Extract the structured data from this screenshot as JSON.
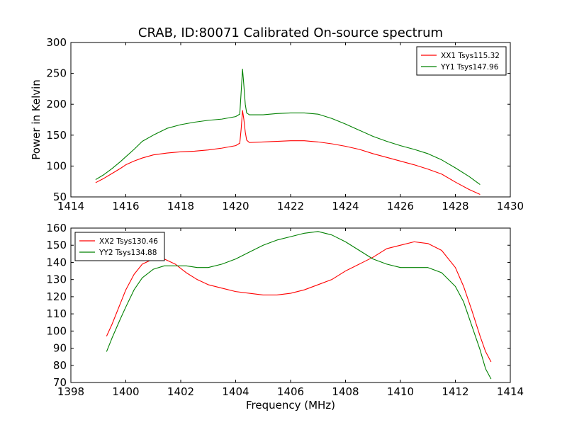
{
  "title": "CRAB, ID:80071 Calibrated On-source spectrum",
  "colors": {
    "xx": "#ff0000",
    "yy": "#008000"
  },
  "chart_data": [
    {
      "type": "line",
      "ylabel": "Power in Kelvin",
      "xlabel": "",
      "xlim": [
        1414,
        1430
      ],
      "ylim": [
        50,
        300
      ],
      "xticks": [
        1414,
        1416,
        1418,
        1420,
        1422,
        1424,
        1426,
        1428,
        1430
      ],
      "yticks": [
        50,
        100,
        150,
        200,
        250,
        300
      ],
      "legend": "top-right",
      "grid": false,
      "series": [
        {
          "name": "XX1 Tsys115.32",
          "color": "#ff0000",
          "points": [
            [
              1414.9,
              73
            ],
            [
              1415.2,
              80
            ],
            [
              1415.5,
              88
            ],
            [
              1415.8,
              96
            ],
            [
              1416.0,
              102
            ],
            [
              1416.3,
              108
            ],
            [
              1416.6,
              113
            ],
            [
              1417.0,
              118
            ],
            [
              1417.5,
              121
            ],
            [
              1418.0,
              123
            ],
            [
              1418.5,
              124
            ],
            [
              1419.0,
              126
            ],
            [
              1419.5,
              129
            ],
            [
              1420.0,
              133
            ],
            [
              1420.15,
              137
            ],
            [
              1420.2,
              160
            ],
            [
              1420.25,
              190
            ],
            [
              1420.3,
              175
            ],
            [
              1420.35,
              155
            ],
            [
              1420.4,
              142
            ],
            [
              1420.5,
              138
            ],
            [
              1421.0,
              139
            ],
            [
              1421.5,
              140
            ],
            [
              1422.0,
              141
            ],
            [
              1422.5,
              141
            ],
            [
              1423.0,
              139
            ],
            [
              1423.5,
              136
            ],
            [
              1424.0,
              132
            ],
            [
              1424.5,
              127
            ],
            [
              1425.0,
              120
            ],
            [
              1425.5,
              114
            ],
            [
              1426.0,
              108
            ],
            [
              1426.5,
              102
            ],
            [
              1427.0,
              95
            ],
            [
              1427.5,
              87
            ],
            [
              1428.0,
              74
            ],
            [
              1428.5,
              62
            ],
            [
              1428.9,
              54
            ]
          ]
        },
        {
          "name": "YY1 Tsys147.96",
          "color": "#008000",
          "points": [
            [
              1414.9,
              78
            ],
            [
              1415.2,
              86
            ],
            [
              1415.5,
              96
            ],
            [
              1415.8,
              107
            ],
            [
              1416.0,
              115
            ],
            [
              1416.3,
              127
            ],
            [
              1416.6,
              140
            ],
            [
              1417.0,
              150
            ],
            [
              1417.5,
              161
            ],
            [
              1418.0,
              167
            ],
            [
              1418.5,
              171
            ],
            [
              1419.0,
              174
            ],
            [
              1419.5,
              176
            ],
            [
              1420.0,
              180
            ],
            [
              1420.15,
              184
            ],
            [
              1420.2,
              220
            ],
            [
              1420.25,
              257
            ],
            [
              1420.3,
              230
            ],
            [
              1420.35,
              200
            ],
            [
              1420.4,
              186
            ],
            [
              1420.5,
              183
            ],
            [
              1421.0,
              183
            ],
            [
              1421.5,
              185
            ],
            [
              1422.0,
              186
            ],
            [
              1422.5,
              186
            ],
            [
              1423.0,
              184
            ],
            [
              1423.5,
              177
            ],
            [
              1424.0,
              168
            ],
            [
              1424.5,
              158
            ],
            [
              1425.0,
              148
            ],
            [
              1425.5,
              140
            ],
            [
              1426.0,
              133
            ],
            [
              1426.5,
              127
            ],
            [
              1427.0,
              120
            ],
            [
              1427.5,
              110
            ],
            [
              1428.0,
              97
            ],
            [
              1428.5,
              83
            ],
            [
              1428.9,
              70
            ]
          ]
        }
      ]
    },
    {
      "type": "line",
      "ylabel": "",
      "xlabel": "Frequency (MHz)",
      "xlim": [
        1398,
        1414
      ],
      "ylim": [
        70,
        160
      ],
      "xticks": [
        1398,
        1400,
        1402,
        1404,
        1406,
        1408,
        1410,
        1412,
        1414
      ],
      "yticks": [
        70,
        80,
        90,
        100,
        110,
        120,
        130,
        140,
        150,
        160
      ],
      "legend": "top-left",
      "grid": false,
      "series": [
        {
          "name": "XX2 Tsys130.46",
          "color": "#ff0000",
          "points": [
            [
              1399.3,
              97
            ],
            [
              1399.5,
              104
            ],
            [
              1399.8,
              116
            ],
            [
              1400.0,
              124
            ],
            [
              1400.3,
              133
            ],
            [
              1400.6,
              139
            ],
            [
              1401.0,
              142
            ],
            [
              1401.4,
              142
            ],
            [
              1401.8,
              139
            ],
            [
              1402.2,
              134
            ],
            [
              1402.6,
              130
            ],
            [
              1403.0,
              127
            ],
            [
              1403.5,
              125
            ],
            [
              1404.0,
              123
            ],
            [
              1404.5,
              122
            ],
            [
              1405.0,
              121
            ],
            [
              1405.5,
              121
            ],
            [
              1406.0,
              122
            ],
            [
              1406.5,
              124
            ],
            [
              1407.0,
              127
            ],
            [
              1407.5,
              130
            ],
            [
              1408.0,
              135
            ],
            [
              1408.5,
              139
            ],
            [
              1409.0,
              143
            ],
            [
              1409.5,
              148
            ],
            [
              1410.0,
              150
            ],
            [
              1410.5,
              152
            ],
            [
              1411.0,
              151
            ],
            [
              1411.5,
              147
            ],
            [
              1412.0,
              137
            ],
            [
              1412.3,
              126
            ],
            [
              1412.6,
              112
            ],
            [
              1412.9,
              97
            ],
            [
              1413.1,
              88
            ],
            [
              1413.3,
              82
            ]
          ]
        },
        {
          "name": "YY2 Tsys134.88",
          "color": "#008000",
          "points": [
            [
              1399.3,
              88
            ],
            [
              1399.5,
              96
            ],
            [
              1399.8,
              107
            ],
            [
              1400.0,
              114
            ],
            [
              1400.3,
              124
            ],
            [
              1400.6,
              131
            ],
            [
              1401.0,
              136
            ],
            [
              1401.4,
              138
            ],
            [
              1401.8,
              138
            ],
            [
              1402.2,
              138
            ],
            [
              1402.6,
              137
            ],
            [
              1403.0,
              137
            ],
            [
              1403.5,
              139
            ],
            [
              1404.0,
              142
            ],
            [
              1404.5,
              146
            ],
            [
              1405.0,
              150
            ],
            [
              1405.5,
              153
            ],
            [
              1406.0,
              155
            ],
            [
              1406.5,
              157
            ],
            [
              1407.0,
              158
            ],
            [
              1407.5,
              156
            ],
            [
              1408.0,
              152
            ],
            [
              1408.5,
              147
            ],
            [
              1409.0,
              142
            ],
            [
              1409.5,
              139
            ],
            [
              1410.0,
              137
            ],
            [
              1410.5,
              137
            ],
            [
              1411.0,
              137
            ],
            [
              1411.5,
              134
            ],
            [
              1412.0,
              126
            ],
            [
              1412.3,
              117
            ],
            [
              1412.6,
              103
            ],
            [
              1412.9,
              89
            ],
            [
              1413.1,
              78
            ],
            [
              1413.3,
              72
            ]
          ]
        }
      ]
    }
  ]
}
